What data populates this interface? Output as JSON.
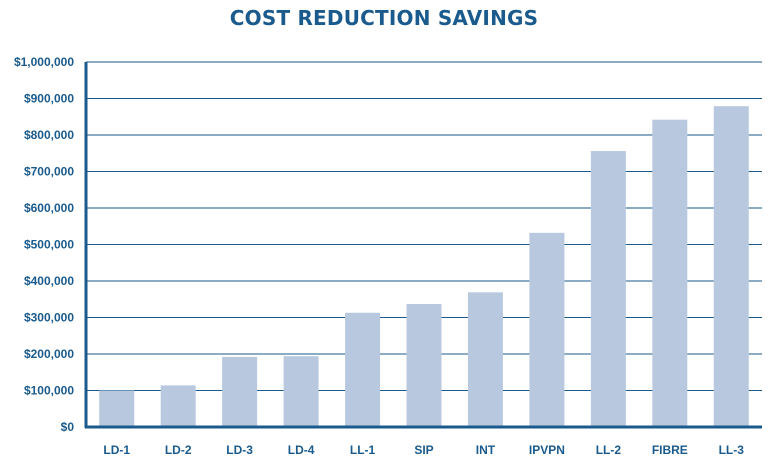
{
  "chart_data": {
    "type": "bar",
    "title": "COST REDUCTION SAVINGS",
    "xlabel": "",
    "ylabel": "",
    "categories": [
      "LD-1",
      "LD-2",
      "LD-3",
      "LD-4",
      "LL-1",
      "SIP",
      "INT",
      "IPVPN",
      "LL-2",
      "FIBRE",
      "LL-3"
    ],
    "values": [
      100000,
      114000,
      192000,
      194000,
      313000,
      337000,
      369000,
      532000,
      756000,
      842000,
      879000
    ],
    "ylim": [
      0,
      1000000
    ],
    "yticks": [
      0,
      100000,
      200000,
      300000,
      400000,
      500000,
      600000,
      700000,
      800000,
      900000,
      1000000
    ],
    "ytick_labels": [
      "$0",
      "$100,000",
      "$200,000",
      "$300,000",
      "$400,000",
      "$500,000",
      "$600,000",
      "$700,000",
      "$800,000",
      "$900,000",
      "$1,000,000"
    ],
    "grid": true,
    "legend": "none"
  },
  "colors": {
    "bar": "#b8c9df",
    "title": "#1a5a8c",
    "axis_text": "#1a5a8c",
    "grid": "#1a5a8c",
    "axis_line": "#1a5a8c"
  }
}
